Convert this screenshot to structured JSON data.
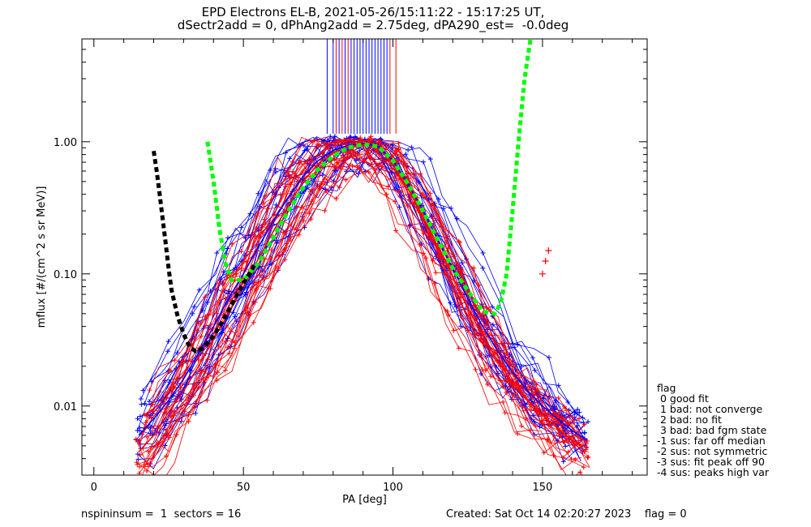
{
  "title": {
    "line1": "EPD Electrons EL-B, 2021-05-26/15:11:22 - 15:17:25 UT,",
    "line2": "dSectr2add = 0, dPhAng2add = 2.75deg, dPA290_est=  -0.0deg"
  },
  "footer": {
    "left": "nspininsum =  1  sectors = 16",
    "right": "Created: Sat Oct 14 02:20:27 2023    flag = 0"
  },
  "flag_legend": {
    "title": "flag",
    "items": [
      " 0 good fit",
      " 1 bad: not converge",
      " 2 bad: no fit",
      " 3 bad: bad fgm state",
      "-1 sus: far off median",
      "-2 sus: not symmetric",
      "-3 sus: fit peak off 90",
      "-4 sus: peaks high var"
    ]
  },
  "colors": {
    "series_blue": "#0000ff",
    "series_red": "#ff0000",
    "fit_green": "#00ff00",
    "fit_black": "#000000"
  },
  "chart_data": {
    "type": "line",
    "xlabel": "PA [deg]",
    "ylabel": "mflux [#/(cm^2 s sr MeV)]",
    "xlim": [
      -4,
      185
    ],
    "ylim": [
      0.003,
      6.0
    ],
    "yscale": "log",
    "xticks": [
      0,
      50,
      100,
      150
    ],
    "xtick_labels": [
      "0",
      "50",
      "100",
      "150"
    ],
    "yticks": [
      0.01,
      0.1,
      1.0
    ],
    "ytick_labels": [
      "0.01",
      "0.10",
      "1.00"
    ],
    "series": [
      {
        "color": "blue",
        "x": [
          15,
          20,
          25,
          30,
          35,
          40,
          45,
          50,
          55,
          60,
          65,
          70,
          75,
          80,
          85,
          90,
          95,
          100,
          105,
          110,
          115,
          120,
          125,
          130,
          135,
          140,
          145,
          150,
          155,
          160,
          165
        ],
        "y": [
          0.006,
          0.008,
          0.011,
          0.016,
          0.025,
          0.04,
          0.065,
          0.1,
          0.16,
          0.25,
          0.38,
          0.55,
          0.72,
          0.86,
          0.94,
          0.97,
          0.92,
          0.72,
          0.48,
          0.3,
          0.18,
          0.11,
          0.065,
          0.04,
          0.026,
          0.018,
          0.013,
          0.01,
          0.008,
          0.0065,
          0.0055
        ]
      },
      {
        "color": "red",
        "x": [
          15,
          20,
          25,
          30,
          35,
          40,
          45,
          50,
          55,
          60,
          65,
          70,
          75,
          80,
          85,
          90,
          95,
          100,
          105,
          110,
          115,
          120,
          125,
          130,
          135,
          140,
          145,
          150,
          155,
          160,
          165
        ],
        "y": [
          0.0045,
          0.006,
          0.009,
          0.013,
          0.02,
          0.032,
          0.05,
          0.08,
          0.13,
          0.21,
          0.33,
          0.5,
          0.68,
          0.83,
          0.92,
          0.95,
          0.9,
          0.68,
          0.44,
          0.27,
          0.16,
          0.095,
          0.055,
          0.034,
          0.022,
          0.015,
          0.011,
          0.0085,
          0.0068,
          0.0055,
          0.0048
        ]
      },
      {
        "color": "green",
        "style": "dashed",
        "x": [
          38,
          40,
          42,
          44,
          46,
          50,
          55,
          60,
          65,
          70,
          75,
          80,
          85,
          90,
          95,
          100,
          105,
          110,
          115,
          120,
          125,
          130,
          134,
          136,
          138,
          140,
          142,
          144,
          146
        ],
        "y": [
          1.0,
          0.5,
          0.22,
          0.12,
          0.09,
          0.09,
          0.12,
          0.19,
          0.3,
          0.45,
          0.62,
          0.78,
          0.9,
          0.96,
          0.92,
          0.72,
          0.48,
          0.3,
          0.18,
          0.11,
          0.075,
          0.052,
          0.05,
          0.06,
          0.1,
          0.3,
          1.0,
          3.0,
          6.0
        ]
      },
      {
        "color": "black",
        "style": "dashed",
        "x": [
          20,
          21,
          22,
          23,
          24,
          25,
          26,
          28,
          30,
          32,
          34,
          36,
          38,
          40,
          42,
          44,
          46,
          48,
          50,
          52,
          54
        ],
        "y": [
          0.85,
          0.6,
          0.4,
          0.26,
          0.17,
          0.11,
          0.075,
          0.048,
          0.035,
          0.028,
          0.026,
          0.027,
          0.03,
          0.034,
          0.04,
          0.048,
          0.058,
          0.07,
          0.085,
          0.1,
          0.12
        ]
      }
    ],
    "top_spikes": {
      "blue_x": [
        78,
        80,
        82,
        84,
        86,
        87,
        88,
        89,
        90,
        91,
        92,
        93,
        94,
        95,
        96,
        97,
        98
      ],
      "red_x": [
        81,
        83,
        85,
        99,
        101
      ]
    },
    "outliers_red": [
      {
        "x": 152,
        "y": 0.15
      },
      {
        "x": 151,
        "y": 0.125
      },
      {
        "x": 150,
        "y": 0.1
      }
    ]
  }
}
